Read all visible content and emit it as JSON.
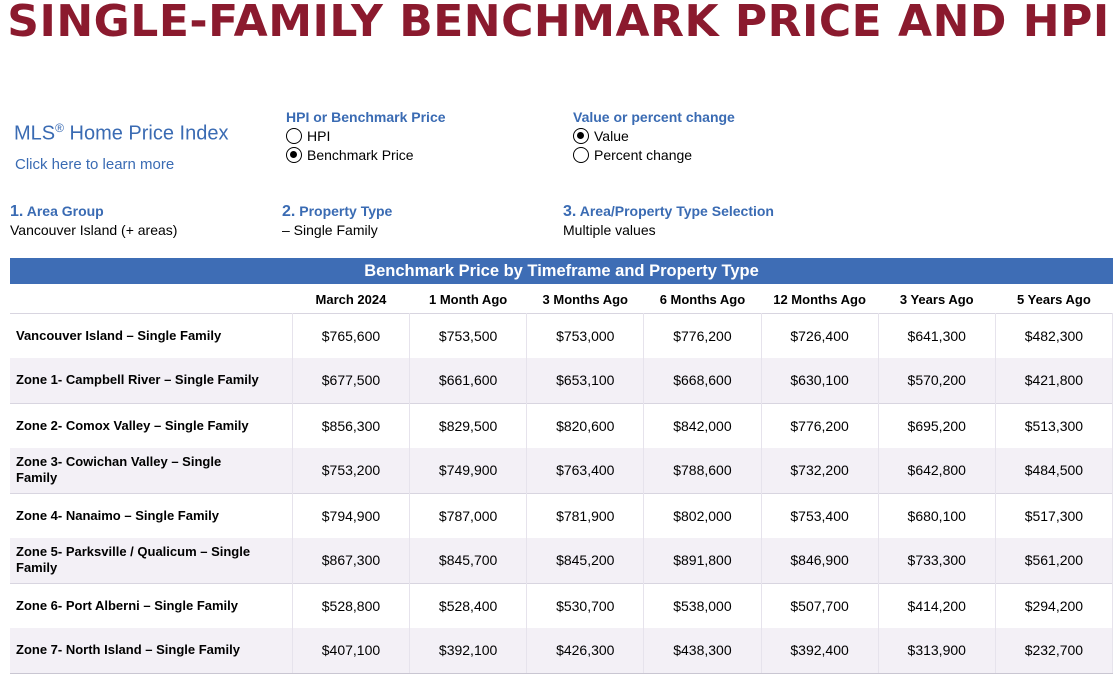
{
  "page_title": "SINGLE-FAMILY BENCHMARK PRICE AND HPI",
  "mls": {
    "title_text": "MLS",
    "title_mark": "®",
    "title_rest": " Home Price Index",
    "link": "Click here to learn more"
  },
  "hpi_or_benchmark": {
    "title": "HPI or Benchmark Price",
    "options": [
      {
        "label": "HPI",
        "selected": false
      },
      {
        "label": "Benchmark Price",
        "selected": true
      }
    ]
  },
  "value_or_percent": {
    "title": "Value or percent change",
    "options": [
      {
        "label": "Value",
        "selected": true
      },
      {
        "label": "Percent change",
        "selected": false
      }
    ]
  },
  "filters": [
    {
      "number": "1.",
      "title": "Area Group",
      "value": "Vancouver Island (+ areas)"
    },
    {
      "number": "2.",
      "title": "Property Type",
      "value": "– Single Family"
    },
    {
      "number": "3.",
      "title": "Area/Property Type Selection",
      "value": "Multiple values"
    }
  ],
  "table": {
    "title": "Benchmark Price by Timeframe and Property Type",
    "columns": [
      "",
      "March 2024",
      "1 Month Ago",
      "3 Months Ago",
      "6 Months Ago",
      "12 Months Ago",
      "3 Years Ago",
      "5 Years Ago"
    ],
    "rows": [
      {
        "label": "Vancouver Island – Single Family",
        "values": [
          "$765,600",
          "$753,500",
          "$753,000",
          "$776,200",
          "$726,400",
          "$641,300",
          "$482,300"
        ]
      },
      {
        "label": "Zone 1- Campbell River – Single Family",
        "values": [
          "$677,500",
          "$661,600",
          "$653,100",
          "$668,600",
          "$630,100",
          "$570,200",
          "$421,800"
        ]
      },
      {
        "label": "Zone 2- Comox Valley – Single Family",
        "values": [
          "$856,300",
          "$829,500",
          "$820,600",
          "$842,000",
          "$776,200",
          "$695,200",
          "$513,300"
        ]
      },
      {
        "label": "Zone 3- Cowichan Valley – Single Family",
        "values": [
          "$753,200",
          "$749,900",
          "$763,400",
          "$788,600",
          "$732,200",
          "$642,800",
          "$484,500"
        ]
      },
      {
        "label": "Zone 4- Nanaimo – Single Family",
        "values": [
          "$794,900",
          "$787,000",
          "$781,900",
          "$802,000",
          "$753,400",
          "$680,100",
          "$517,300"
        ]
      },
      {
        "label": "Zone 5- Parksville / Qualicum – Single Family",
        "values": [
          "$867,300",
          "$845,700",
          "$845,200",
          "$891,800",
          "$846,900",
          "$733,300",
          "$561,200"
        ]
      },
      {
        "label": "Zone 6- Port Alberni – Single Family",
        "values": [
          "$528,800",
          "$528,400",
          "$530,700",
          "$538,000",
          "$507,700",
          "$414,200",
          "$294,200"
        ]
      },
      {
        "label": "Zone 7- North Island – Single Family",
        "values": [
          "$407,100",
          "$392,100",
          "$426,300",
          "$438,300",
          "$392,400",
          "$313,900",
          "$232,700"
        ]
      }
    ]
  },
  "colors": {
    "title": "#8b1a2e",
    "accent_blue": "#3a6bb3",
    "table_header": "#3e6db5",
    "row_alt": "#f3f0f6"
  }
}
